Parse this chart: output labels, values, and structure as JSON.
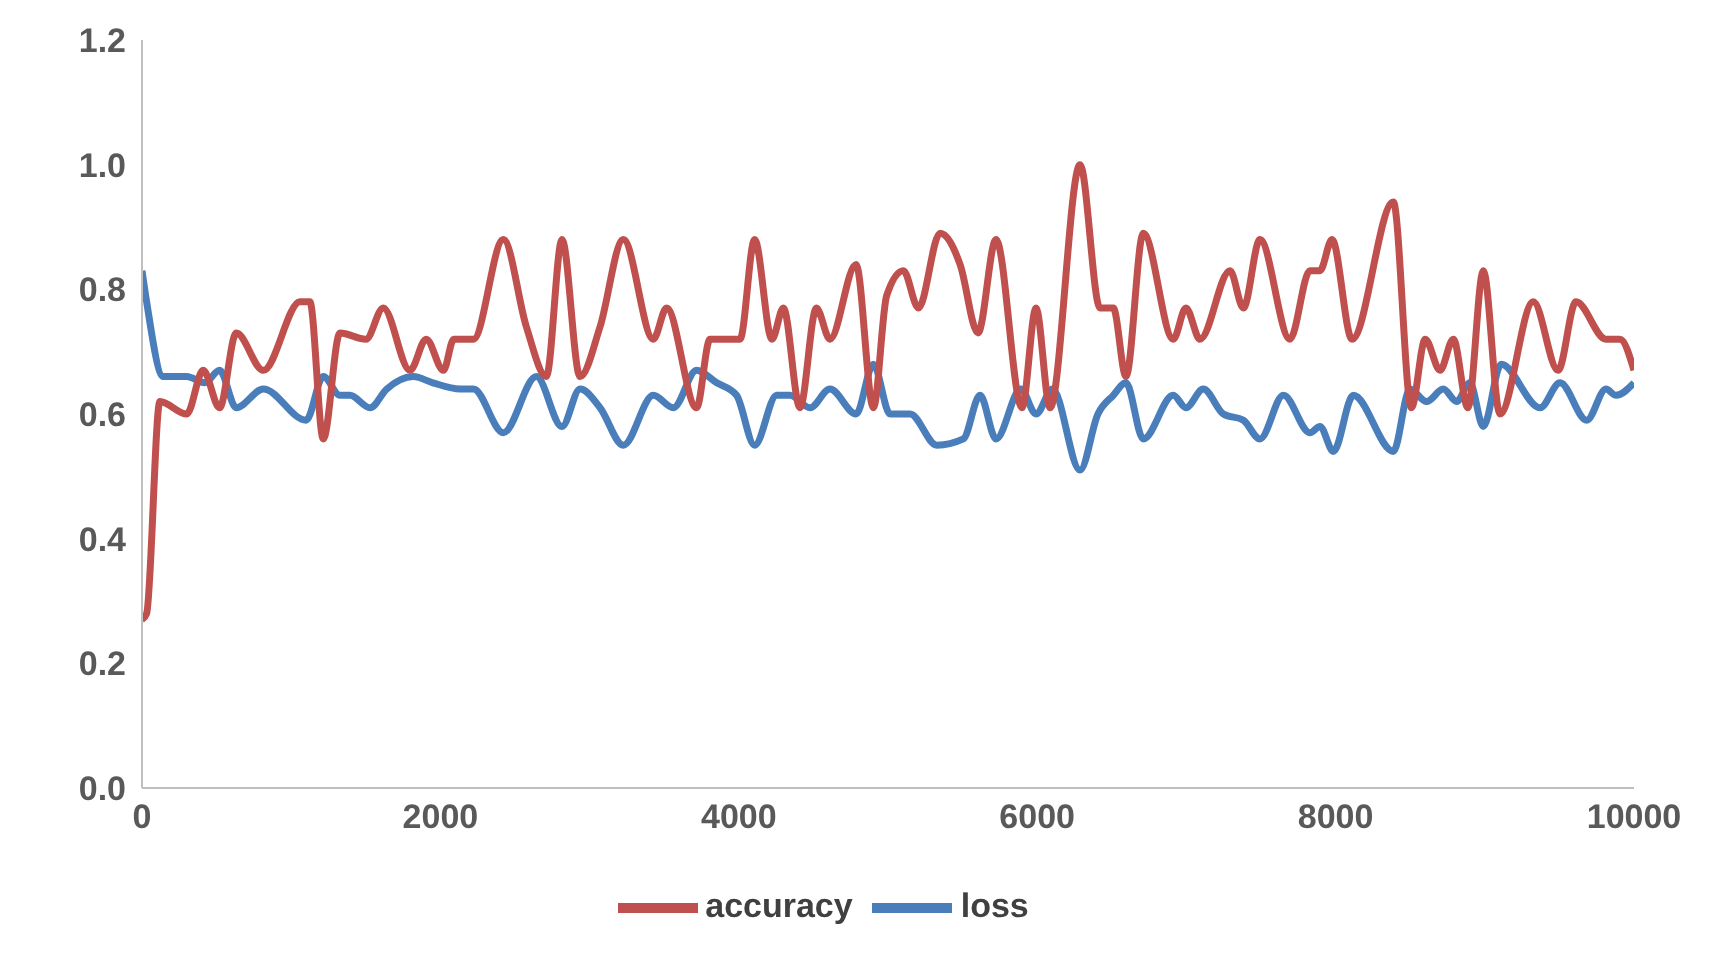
{
  "chart_data": {
    "type": "line",
    "xlim": [
      0,
      10000
    ],
    "xticks": [
      0,
      2000,
      4000,
      6000,
      8000,
      10000
    ],
    "ylim": [
      0,
      1.2
    ],
    "yticks": [
      {
        "value": 0,
        "label": "0.0"
      },
      {
        "value": 0.2,
        "label": "0.2"
      },
      {
        "value": 0.4,
        "label": "0.4"
      },
      {
        "value": 0.6,
        "label": "0.6"
      },
      {
        "value": 0.8,
        "label": "0.8"
      },
      {
        "value": 1,
        "label": "1.0"
      },
      {
        "value": 1.2,
        "label": "1.2"
      }
    ],
    "grid": false,
    "legend": "bottom",
    "marker": "none",
    "line_style": "solid",
    "series": [
      {
        "name": "loss",
        "color": "#4a7ebb",
        "x": [
          0,
          31,
          143,
          300,
          420,
          520,
          632,
          813,
          1100,
          1215,
          1327,
          1394,
          1528,
          1640,
          1819,
          1950,
          2131,
          2221,
          2422,
          2643,
          2815,
          2936,
          3070,
          3226,
          3427,
          3561,
          3717,
          3852,
          3985,
          4106,
          4254,
          4343,
          4477,
          4611,
          4786,
          4902,
          5014,
          5148,
          5327,
          5505,
          5617,
          5724,
          5890,
          5992,
          6103,
          6287,
          6407,
          6510,
          6595,
          6711,
          6912,
          6997,
          7113,
          7248,
          7382,
          7493,
          7650,
          7828,
          7895,
          7985,
          8119,
          8387,
          8498,
          8610,
          8722,
          8811,
          8900,
          8990,
          9110,
          9370,
          9504,
          9683,
          9812,
          9879,
          10000
        ],
        "values": [
          0.83,
          0.78,
          0.66,
          0.66,
          0.65,
          0.67,
          0.61,
          0.64,
          0.59,
          0.66,
          0.63,
          0.63,
          0.61,
          0.64,
          0.66,
          0.65,
          0.64,
          0.64,
          0.57,
          0.66,
          0.58,
          0.64,
          0.61,
          0.55,
          0.63,
          0.61,
          0.67,
          0.65,
          0.63,
          0.55,
          0.63,
          0.63,
          0.61,
          0.64,
          0.6,
          0.68,
          0.6,
          0.6,
          0.55,
          0.56,
          0.63,
          0.56,
          0.64,
          0.6,
          0.64,
          0.51,
          0.6,
          0.63,
          0.65,
          0.56,
          0.63,
          0.61,
          0.64,
          0.6,
          0.59,
          0.56,
          0.63,
          0.57,
          0.58,
          0.54,
          0.63,
          0.54,
          0.64,
          0.62,
          0.64,
          0.62,
          0.65,
          0.58,
          0.68,
          0.61,
          0.65,
          0.59,
          0.64,
          0.63,
          0.65
        ]
      },
      {
        "name": "accuracy",
        "color": "#c0504d",
        "x": [
          0,
          31,
          120,
          300,
          410,
          520,
          632,
          813,
          1059,
          1125,
          1215,
          1327,
          1501,
          1617,
          1796,
          1905,
          2020,
          2090,
          2221,
          2422,
          2576,
          2710,
          2815,
          2936,
          3070,
          3226,
          3427,
          3516,
          3717,
          3807,
          4008,
          4106,
          4222,
          4299,
          4410,
          4520,
          4611,
          4786,
          4902,
          4991,
          5103,
          5204,
          5349,
          5483,
          5603,
          5724,
          5898,
          5992,
          6086,
          6287,
          6421,
          6510,
          6595,
          6711,
          6912,
          6997,
          7091,
          7292,
          7382,
          7493,
          7694,
          7828,
          7895,
          7976,
          8110,
          8387,
          8508,
          8601,
          8700,
          8789,
          8887,
          8990,
          9102,
          9325,
          9491,
          9611,
          9812,
          9906,
          10000
        ],
        "values": [
          0.27,
          0.28,
          0.62,
          0.6,
          0.67,
          0.61,
          0.73,
          0.67,
          0.78,
          0.78,
          0.56,
          0.73,
          0.72,
          0.77,
          0.67,
          0.72,
          0.67,
          0.72,
          0.72,
          0.88,
          0.74,
          0.66,
          0.88,
          0.66,
          0.74,
          0.88,
          0.72,
          0.77,
          0.61,
          0.72,
          0.72,
          0.88,
          0.72,
          0.77,
          0.61,
          0.77,
          0.72,
          0.84,
          0.61,
          0.79,
          0.83,
          0.77,
          0.89,
          0.84,
          0.73,
          0.88,
          0.61,
          0.77,
          0.61,
          1.0,
          0.77,
          0.77,
          0.66,
          0.89,
          0.72,
          0.77,
          0.72,
          0.83,
          0.77,
          0.88,
          0.72,
          0.83,
          0.83,
          0.88,
          0.72,
          0.94,
          0.61,
          0.72,
          0.67,
          0.72,
          0.61,
          0.83,
          0.6,
          0.78,
          0.67,
          0.78,
          0.72,
          0.72,
          0.67
        ]
      }
    ]
  }
}
